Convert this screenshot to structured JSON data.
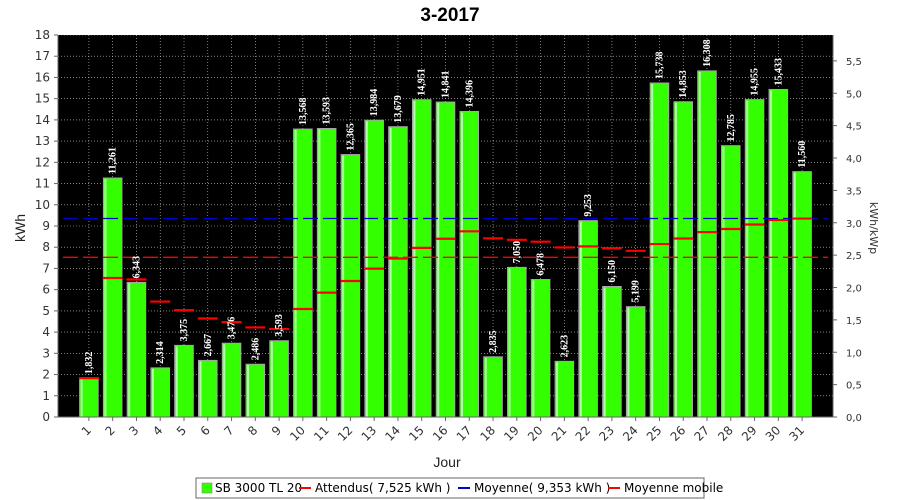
{
  "chart_data": {
    "type": "bar",
    "title": "3-2017",
    "xlabel": "Jour",
    "ylabel": "kWh",
    "y2label": "kWh/kWp",
    "ylim": [
      0,
      18
    ],
    "y2lim": [
      0,
      5.9
    ],
    "yticks": [
      "0",
      "1",
      "2",
      "3",
      "4",
      "5",
      "6",
      "7",
      "8",
      "9",
      "10",
      "11",
      "12",
      "13",
      "14",
      "15",
      "16",
      "17",
      "18"
    ],
    "y2ticks": [
      "0,0",
      "0,5",
      "1,0",
      "1,5",
      "2,0",
      "2,5",
      "3,0",
      "3,5",
      "4,0",
      "4,5",
      "5,0",
      "5,5"
    ],
    "categories": [
      "1",
      "2",
      "3",
      "4",
      "5",
      "6",
      "7",
      "8",
      "9",
      "10",
      "11",
      "12",
      "13",
      "14",
      "15",
      "16",
      "17",
      "18",
      "19",
      "20",
      "21",
      "22",
      "23",
      "24",
      "25",
      "26",
      "27",
      "28",
      "29",
      "30",
      "31"
    ],
    "series": [
      {
        "name": "SB 3000 TL 20",
        "color": "#33ff00",
        "values": [
          1.832,
          11.261,
          6.343,
          2.314,
          3.375,
          2.667,
          3.476,
          2.486,
          3.593,
          13.568,
          13.593,
          12.365,
          13.984,
          13.679,
          14.951,
          14.841,
          14.396,
          2.835,
          7.05,
          6.478,
          2.623,
          9.253,
          6.15,
          5.199,
          15.738,
          14.853,
          16.308,
          12.785,
          14.955,
          15.433,
          11.56
        ],
        "labels": [
          "1,832",
          "11,261",
          "6,343",
          "2,314",
          "3,375",
          "2,667",
          "3,476",
          "2,486",
          "3,593",
          "13,568",
          "13,593",
          "12,365",
          "13,984",
          "13,679",
          "14,951",
          "14,841",
          "14,396",
          "2,835",
          "7,050",
          "6,478",
          "2,623",
          "9,253",
          "6,150",
          "5,199",
          "15,738",
          "14,853",
          "16,308",
          "12,785",
          "14,955",
          "15,433",
          "11,560"
        ]
      },
      {
        "name": "Moyenne mobile",
        "color": "#ff0000",
        "values": [
          1.832,
          6.55,
          6.48,
          5.44,
          5.03,
          4.64,
          4.47,
          4.22,
          4.15,
          5.09,
          5.86,
          6.41,
          6.99,
          7.47,
          7.97,
          8.4,
          8.75,
          8.42,
          8.35,
          8.26,
          7.99,
          8.04,
          7.95,
          7.83,
          8.15,
          8.41,
          8.71,
          8.86,
          9.07,
          9.28,
          9.35
        ]
      }
    ],
    "reference_lines": [
      {
        "name": "Attendus( 7,525 kWh )",
        "value": 7.525,
        "color": "#ff0000"
      },
      {
        "name": "Moyenne( 9,353 kWh )",
        "value": 9.353,
        "color": "#0000cc"
      }
    ],
    "legend": {
      "placement": "bottom",
      "items": [
        {
          "label": "SB 3000 TL 20",
          "kind": "box",
          "color": "#33ff00"
        },
        {
          "label": "Attendus( 7,525 kWh )",
          "kind": "line",
          "color": "#ff0000"
        },
        {
          "label": "Moyenne( 9,353 kWh )",
          "kind": "line",
          "color": "#0000cc"
        },
        {
          "label": "Moyenne mobile",
          "kind": "line",
          "color": "#ff0000"
        }
      ]
    },
    "background": "#000000",
    "grid": true
  }
}
